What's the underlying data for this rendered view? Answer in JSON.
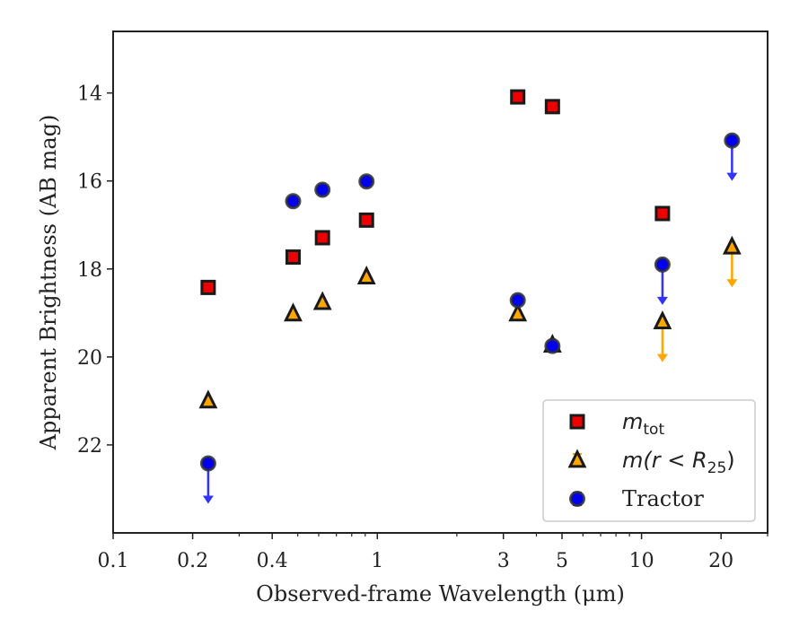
{
  "chart_data": {
    "type": "scatter",
    "xlabel": "Observed-frame Wavelength (μm)",
    "ylabel": "Apparent Brightness (AB mag)",
    "xscale": "log",
    "xlim": [
      0.1,
      30
    ],
    "ylim": [
      24,
      12.6
    ],
    "y_inverted": true,
    "x_ticks": [
      {
        "value": 0.1,
        "label": "0.1"
      },
      {
        "value": 0.2,
        "label": "0.2"
      },
      {
        "value": 0.4,
        "label": "0.4"
      },
      {
        "value": 1,
        "label": "1"
      },
      {
        "value": 3,
        "label": "3"
      },
      {
        "value": 5,
        "label": "5"
      },
      {
        "value": 10,
        "label": "10"
      },
      {
        "value": 20,
        "label": "20"
      }
    ],
    "y_ticks": [
      {
        "value": 14,
        "label": "14"
      },
      {
        "value": 16,
        "label": "16"
      },
      {
        "value": 18,
        "label": "18"
      },
      {
        "value": 20,
        "label": "20"
      },
      {
        "value": 22,
        "label": "22"
      }
    ],
    "grid": false,
    "legend_position": "bottom-right",
    "series": [
      {
        "key": "mtot",
        "legend_main": "m",
        "legend_sub": "tot",
        "marker": "square",
        "color": "#ee0000",
        "errcolor": "#cc0000",
        "points": [
          {
            "x": 0.229,
            "y": 18.42
          },
          {
            "x": 0.48,
            "y": 17.73
          },
          {
            "x": 0.62,
            "y": 17.29
          },
          {
            "x": 0.91,
            "y": 16.89
          },
          {
            "x": 3.4,
            "y": 14.09
          },
          {
            "x": 4.6,
            "y": 14.31
          },
          {
            "x": 12.0,
            "y": 16.74
          }
        ]
      },
      {
        "key": "mr25",
        "legend_main": "m(r < R",
        "legend_sub": "25",
        "legend_tail": ")",
        "marker": "triangle",
        "color": "#ffa500",
        "errcolor": "#ffa500",
        "points": [
          {
            "x": 0.229,
            "y": 21.0
          },
          {
            "x": 0.48,
            "y": 19.02
          },
          {
            "x": 0.62,
            "y": 18.76
          },
          {
            "x": 0.91,
            "y": 18.18
          },
          {
            "x": 3.4,
            "y": 19.02
          },
          {
            "x": 4.6,
            "y": 19.73
          },
          {
            "x": 12.0,
            "y": 19.2,
            "upper_limit": true
          },
          {
            "x": 22.0,
            "y": 17.5,
            "upper_limit": true
          }
        ]
      },
      {
        "key": "tractor",
        "legend_main": "Tractor",
        "marker": "circle",
        "color": "#0000ee",
        "errcolor": "#3333ff",
        "points": [
          {
            "x": 0.229,
            "y": 22.42,
            "upper_limit": true
          },
          {
            "x": 0.48,
            "y": 16.46
          },
          {
            "x": 0.62,
            "y": 16.2
          },
          {
            "x": 0.91,
            "y": 16.01
          },
          {
            "x": 3.4,
            "y": 18.71
          },
          {
            "x": 4.6,
            "y": 19.75
          },
          {
            "x": 12.0,
            "y": 17.9,
            "upper_limit": true
          },
          {
            "x": 22.0,
            "y": 15.08,
            "upper_limit": true
          }
        ]
      }
    ]
  }
}
